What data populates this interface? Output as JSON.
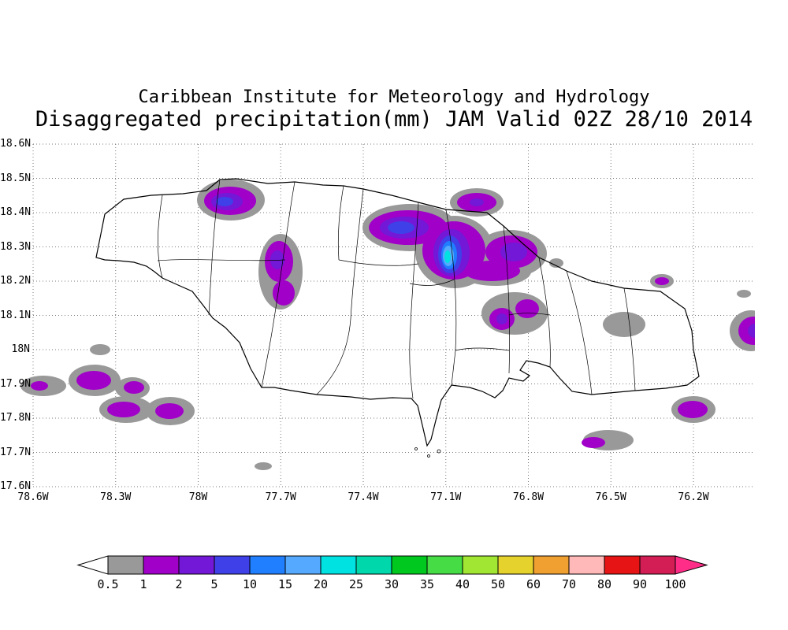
{
  "title": {
    "line1": "Caribbean Institute for Meteorology and Hydrology",
    "line2": "Disaggregated precipitation(mm) JAM Valid 02Z 28/10 2014"
  },
  "axes": {
    "lat_labels": [
      "18.6N",
      "18.5N",
      "18.4N",
      "18.3N",
      "18.2N",
      "18.1N",
      "18N",
      "17.9N",
      "17.8N",
      "17.7N",
      "17.6N"
    ],
    "lon_labels": [
      "78.6W",
      "78.3W",
      "78W",
      "77.7W",
      "77.4W",
      "77.1W",
      "76.8W",
      "76.5W",
      "76.2W"
    ]
  },
  "colorbar": {
    "tick_labels": [
      "0.5",
      "1",
      "2",
      "5",
      "10",
      "15",
      "20",
      "25",
      "30",
      "35",
      "40",
      "50",
      "60",
      "70",
      "80",
      "90",
      "100"
    ],
    "segment_colors": [
      "#999999",
      "#a000c8",
      "#7318d7",
      "#4040e8",
      "#1f7fff",
      "#55aaff",
      "#00e1e1",
      "#00d7aa",
      "#00c81e",
      "#46dc46",
      "#a0e632",
      "#e6d22d",
      "#f0a030",
      "#ffb9b9",
      "#e61414",
      "#d21e55"
    ],
    "left_arrow_color": "#ffffff",
    "right_arrow_color": "#ff2d87",
    "outline_color": "#000000"
  },
  "chart_data": {
    "type": "heatmap",
    "title": "Disaggregated precipitation(mm) JAM Valid 02Z 28/10 2014",
    "source_header": "Caribbean Institute for Meteorology and Hydrology",
    "units": "mm",
    "xlabel": "longitude",
    "ylabel": "latitude",
    "x_ticks": [
      "78.6W",
      "78.3W",
      "78W",
      "77.7W",
      "77.4W",
      "77.1W",
      "76.8W",
      "76.5W",
      "76.2W"
    ],
    "y_ticks": [
      "18.6N",
      "18.5N",
      "18.4N",
      "18.3N",
      "18.2N",
      "18.1N",
      "18N",
      "17.9N",
      "17.8N",
      "17.7N",
      "17.6N"
    ],
    "contour_levels_mm": [
      0.5,
      1,
      2,
      5,
      10,
      15,
      20,
      25,
      30,
      35,
      40,
      50,
      60,
      70,
      80,
      90,
      100
    ],
    "grid": "dotted",
    "legend_position": "bottom",
    "max_shaded_value_mm": "20-25 (cyan core near 77.1W, 18.3N)"
  }
}
